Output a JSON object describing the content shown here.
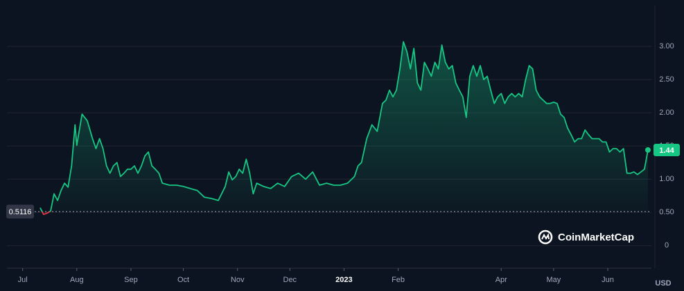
{
  "chart_data": {
    "type": "line",
    "color": "#16c784",
    "below_color": "#ea3943",
    "reference": 0.5116,
    "watermark": "CoinMarketCap",
    "currency": "USD",
    "grid": true,
    "xlim": [
      -9,
      360
    ],
    "ylim": [
      -0.34,
      3.49
    ],
    "xticks": [
      {
        "value": 0,
        "label": "Jul"
      },
      {
        "value": 31,
        "label": "Aug"
      },
      {
        "value": 62,
        "label": "Sep"
      },
      {
        "value": 92,
        "label": "Oct"
      },
      {
        "value": 123,
        "label": "Nov"
      },
      {
        "value": 153,
        "label": "Dec"
      },
      {
        "value": 184,
        "label": "2023"
      },
      {
        "value": 215,
        "label": "Feb"
      },
      {
        "value": 274,
        "label": "Apr"
      },
      {
        "value": 304,
        "label": "May"
      },
      {
        "value": 335,
        "label": "Jun"
      }
    ],
    "yticks": [
      0,
      {
        "value": 0.5,
        "label": "0.50"
      },
      {
        "value": 1,
        "label": "1.00"
      },
      {
        "value": 1.5,
        "label": "1.50"
      },
      {
        "value": 2,
        "label": "2.00"
      },
      {
        "value": 2.5,
        "label": "2.50"
      },
      {
        "value": 3,
        "label": "3.00"
      }
    ],
    "x": [
      10,
      12,
      14,
      16,
      18,
      20,
      22,
      24,
      26,
      28,
      30,
      31,
      34,
      37,
      40,
      42,
      44,
      46,
      48,
      50,
      52,
      54,
      56,
      58,
      60,
      62,
      64,
      66,
      68,
      70,
      72,
      74,
      76,
      78,
      80,
      84,
      88,
      92,
      96,
      100,
      104,
      108,
      112,
      116,
      118,
      120,
      122,
      124,
      126,
      128,
      130,
      132,
      134,
      138,
      142,
      146,
      150,
      154,
      158,
      162,
      166,
      170,
      174,
      178,
      182,
      186,
      190,
      192,
      194,
      197,
      200,
      203,
      206,
      208,
      210,
      212,
      214,
      216,
      218,
      220,
      222,
      224,
      226,
      228,
      230,
      232,
      234,
      236,
      238,
      240,
      242,
      244,
      246,
      248,
      250,
      252,
      254,
      256,
      258,
      260,
      262,
      264,
      266,
      268,
      270,
      272,
      274,
      276,
      278,
      280,
      282,
      284,
      286,
      288,
      290,
      292,
      294,
      296,
      298,
      300,
      302,
      304,
      306,
      308,
      310,
      312,
      314,
      316,
      318,
      320,
      322,
      324,
      326,
      328,
      330,
      332,
      334,
      336,
      338,
      340,
      342,
      344,
      346,
      348,
      350,
      352,
      354,
      356,
      358
    ],
    "values": [
      0.57,
      0.47,
      0.49,
      0.52,
      0.78,
      0.68,
      0.83,
      0.94,
      0.88,
      1.2,
      1.82,
      1.51,
      1.98,
      1.88,
      1.61,
      1.46,
      1.61,
      1.46,
      1.2,
      1.09,
      1.2,
      1.25,
      1.04,
      1.09,
      1.15,
      1.15,
      1.2,
      1.09,
      1.2,
      1.35,
      1.41,
      1.2,
      1.15,
      1.09,
      0.94,
      0.91,
      0.91,
      0.89,
      0.86,
      0.83,
      0.73,
      0.71,
      0.68,
      0.89,
      1.11,
      0.99,
      1.04,
      1.15,
      1.09,
      1.3,
      1.09,
      0.78,
      0.94,
      0.89,
      0.86,
      0.94,
      0.89,
      1.04,
      1.09,
      1.0,
      1.11,
      0.91,
      0.94,
      0.91,
      0.91,
      0.94,
      1.04,
      1.2,
      1.25,
      1.61,
      1.82,
      1.72,
      2.14,
      2.19,
      2.34,
      2.24,
      2.34,
      2.66,
      3.07,
      2.92,
      2.66,
      2.97,
      2.45,
      2.34,
      2.76,
      2.66,
      2.55,
      2.76,
      2.66,
      3.02,
      2.76,
      2.66,
      2.71,
      2.45,
      2.34,
      2.24,
      1.93,
      2.55,
      2.71,
      2.55,
      2.71,
      2.5,
      2.55,
      2.34,
      2.14,
      2.24,
      2.29,
      2.14,
      2.24,
      2.29,
      2.24,
      2.29,
      2.24,
      2.5,
      2.71,
      2.66,
      2.34,
      2.24,
      2.19,
      2.14,
      2.14,
      2.16,
      2.14,
      1.98,
      1.93,
      1.77,
      1.67,
      1.56,
      1.61,
      1.61,
      1.74,
      1.67,
      1.61,
      1.61,
      1.61,
      1.56,
      1.56,
      1.41,
      1.46,
      1.46,
      1.41,
      1.46,
      1.09,
      1.09,
      1.11,
      1.07,
      1.11,
      1.15,
      1.44
    ]
  }
}
